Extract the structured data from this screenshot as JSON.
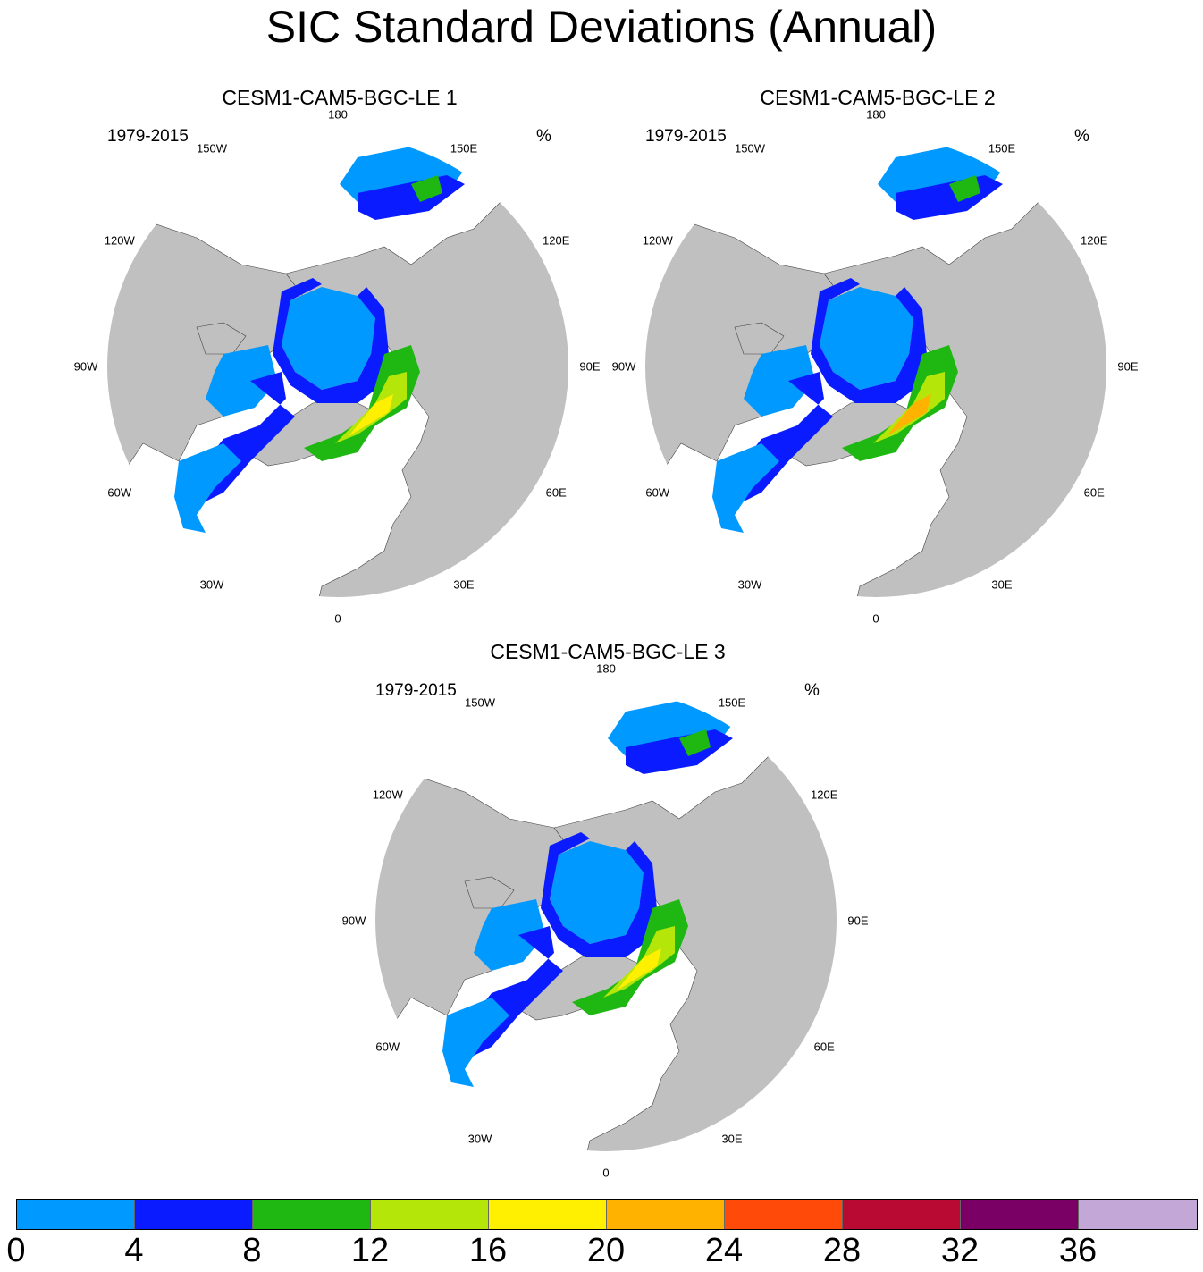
{
  "title": "SIC Standard Deviations (Annual)",
  "panels": [
    {
      "title": "CESM1-CAM5-BGC-LE 1",
      "period": "1979-2015",
      "unit": "%"
    },
    {
      "title": "CESM1-CAM5-BGC-LE 2",
      "period": "1979-2015",
      "unit": "%"
    },
    {
      "title": "CESM1-CAM5-BGC-LE 3",
      "period": "1979-2015",
      "unit": "%"
    }
  ],
  "longitude_labels": [
    "180",
    "150E",
    "120E",
    "90E",
    "60E",
    "30E",
    "0",
    "30W",
    "60W",
    "90W",
    "120W",
    "150W"
  ],
  "colorbar": {
    "labels": [
      "0",
      "4",
      "8",
      "12",
      "16",
      "20",
      "24",
      "28",
      "32",
      "36"
    ],
    "colors": [
      "#0099ff",
      "#0a1cff",
      "#1fb812",
      "#b4e60a",
      "#ffef00",
      "#ffb300",
      "#ff4a0a",
      "#b80a33",
      "#7a0066",
      "#c3a7d6"
    ]
  },
  "colors": {
    "land": "#c0c0c0",
    "ocean": "#ffffff",
    "outline": "#000000"
  }
}
